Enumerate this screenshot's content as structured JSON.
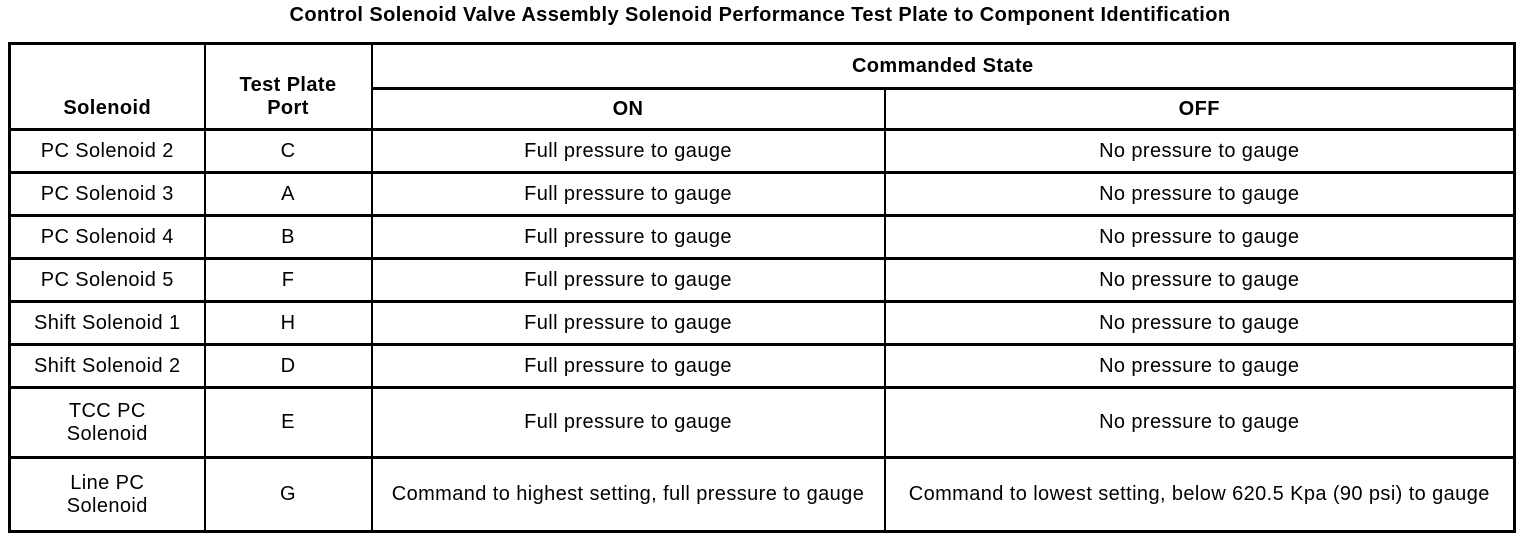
{
  "title": "Control Solenoid Valve Assembly Solenoid Performance Test Plate to Component Identification",
  "table": {
    "headers": {
      "solenoid": "Solenoid",
      "test_plate_port": "Test Plate\nPort",
      "commanded_state": "Commanded State",
      "on": "ON",
      "off": "OFF"
    },
    "rows": [
      {
        "solenoid": "PC Solenoid 2",
        "port": "C",
        "on": "Full pressure to gauge",
        "off": "No pressure to gauge"
      },
      {
        "solenoid": "PC Solenoid 3",
        "port": "A",
        "on": "Full pressure to gauge",
        "off": "No pressure to gauge"
      },
      {
        "solenoid": "PC Solenoid 4",
        "port": "B",
        "on": "Full pressure to gauge",
        "off": "No pressure to gauge"
      },
      {
        "solenoid": "PC Solenoid 5",
        "port": "F",
        "on": "Full pressure to gauge",
        "off": "No pressure to gauge"
      },
      {
        "solenoid": "Shift Solenoid 1",
        "port": "H",
        "on": "Full pressure to gauge",
        "off": "No pressure to gauge"
      },
      {
        "solenoid": "Shift Solenoid 2",
        "port": "D",
        "on": "Full pressure to gauge",
        "off": "No pressure to gauge"
      },
      {
        "solenoid": "TCC PC\nSolenoid",
        "port": "E",
        "on": "Full pressure to gauge",
        "off": "No pressure to gauge"
      },
      {
        "solenoid": "Line PC\nSolenoid",
        "port": "G",
        "on": "Command to highest setting, full pressure to gauge",
        "off": "Command to lowest setting, below 620.5 Kpa (90 psi) to gauge"
      }
    ]
  },
  "colors": {
    "border": "#000000",
    "background": "#ffffff",
    "text": "#000000"
  }
}
